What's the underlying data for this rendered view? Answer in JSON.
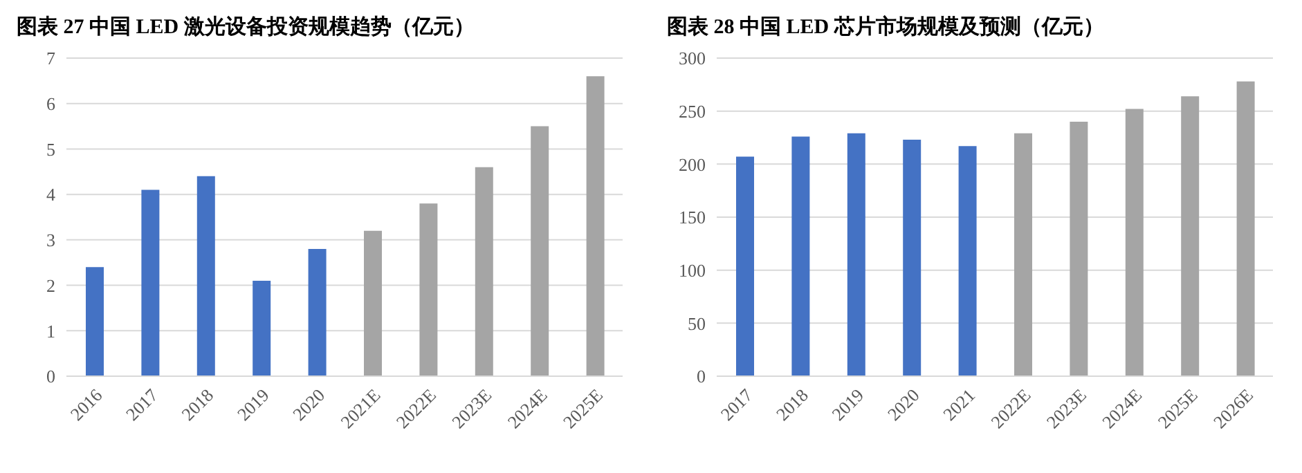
{
  "chart_data": [
    {
      "type": "bar",
      "title": "图表 27 中国 LED 激光设备投资规模趋势（亿元）",
      "categories": [
        "2016",
        "2017",
        "2018",
        "2019",
        "2020",
        "2021E",
        "2022E",
        "2023E",
        "2024E",
        "2025E"
      ],
      "values": [
        2.4,
        4.1,
        4.4,
        2.1,
        2.8,
        3.2,
        3.8,
        4.6,
        5.5,
        6.6
      ],
      "colors": [
        "#4472c4",
        "#4472c4",
        "#4472c4",
        "#4472c4",
        "#4472c4",
        "#a5a5a5",
        "#a5a5a5",
        "#a5a5a5",
        "#a5a5a5",
        "#a5a5a5"
      ],
      "ylim": [
        0,
        7
      ],
      "yticks": [
        0,
        1,
        2,
        3,
        4,
        5,
        6,
        7
      ],
      "grid": "y"
    },
    {
      "type": "bar",
      "title": "图表 28 中国 LED 芯片市场规模及预测（亿元）",
      "categories": [
        "2017",
        "2018",
        "2019",
        "2020",
        "2021",
        "2022E",
        "2023E",
        "2024E",
        "2025E",
        "2026E"
      ],
      "values": [
        207,
        226,
        229,
        223,
        217,
        229,
        240,
        252,
        264,
        278
      ],
      "colors": [
        "#4472c4",
        "#4472c4",
        "#4472c4",
        "#4472c4",
        "#4472c4",
        "#a5a5a5",
        "#a5a5a5",
        "#a5a5a5",
        "#a5a5a5",
        "#a5a5a5"
      ],
      "ylim": [
        0,
        300
      ],
      "yticks": [
        0,
        50,
        100,
        150,
        200,
        250,
        300
      ],
      "grid": "y"
    }
  ]
}
